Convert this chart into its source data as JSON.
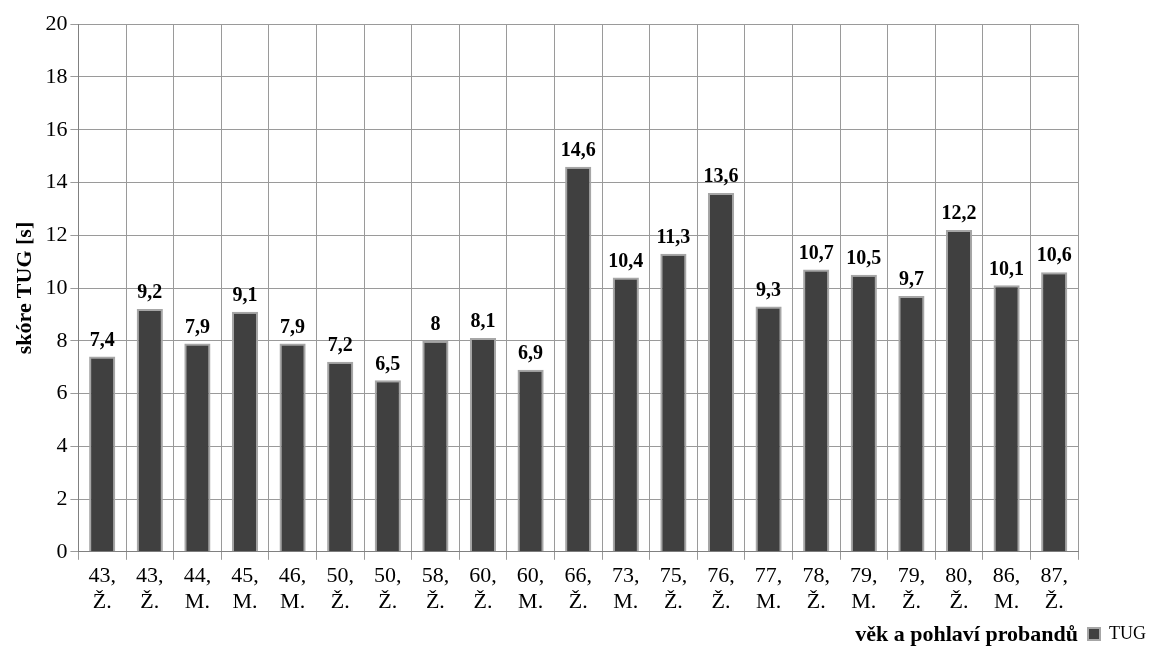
{
  "chart_data": {
    "type": "bar",
    "xlabel": "věk a pohlaví probandů",
    "ylabel": "skóre TUG [s]",
    "categories": [
      "43, Ž.",
      "43, Ž.",
      "44, M.",
      "45, M.",
      "46, M.",
      "50, Ž.",
      "50, Ž.",
      "58, Ž.",
      "60, Ž.",
      "60, M.",
      "66, Ž.",
      "73, M.",
      "75, Ž.",
      "76, Ž.",
      "77, M.",
      "78, Ž.",
      "79, M.",
      "79, Ž.",
      "80, Ž.",
      "86, M.",
      "87, Ž."
    ],
    "series": [
      {
        "name": "TUG",
        "color": "#404040",
        "values": [
          7.4,
          9.2,
          7.9,
          9.1,
          7.9,
          7.2,
          6.5,
          8,
          8.1,
          6.9,
          14.6,
          10.4,
          11.3,
          13.6,
          9.3,
          10.7,
          10.5,
          9.7,
          12.2,
          10.1,
          10.6
        ],
        "value_labels": [
          "7,4",
          "9,2",
          "7,9",
          "9,1",
          "7,9",
          "7,2",
          "6,5",
          "8",
          "8,1",
          "6,9",
          "14,6",
          "10,4",
          "11,3",
          "13,6",
          "9,3",
          "10,7",
          "10,5",
          "9,7",
          "12,2",
          "10,1",
          "10,6"
        ]
      }
    ],
    "ylim": [
      0,
      20
    ],
    "yticks": [
      0,
      2,
      4,
      6,
      8,
      10,
      12,
      14,
      16,
      18,
      20
    ],
    "grid": true,
    "legend": "right"
  }
}
